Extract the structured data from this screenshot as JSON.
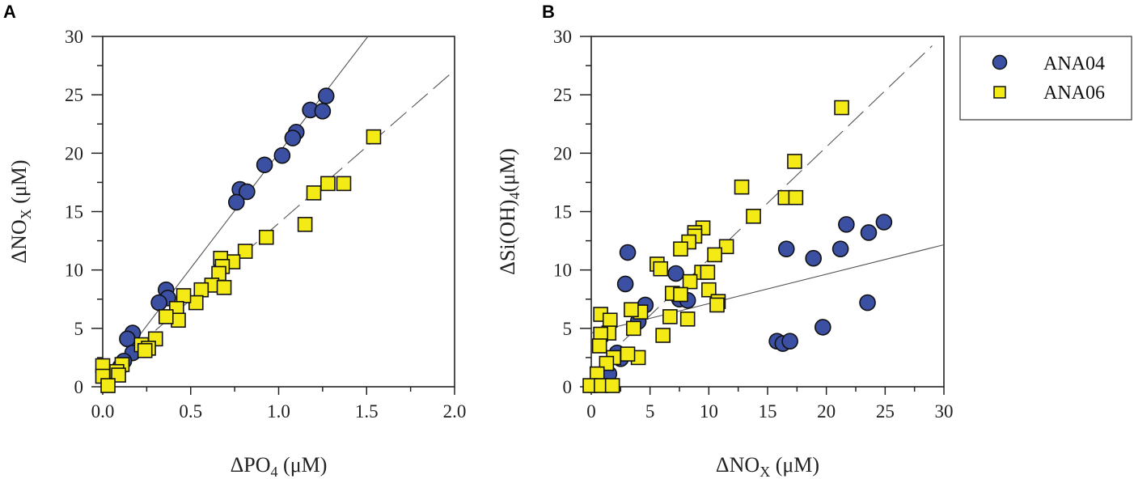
{
  "colors": {
    "circle": "#3b4fa3",
    "square": "#f4eb16",
    "stroke": "#111111",
    "line": "#555555"
  },
  "legend": {
    "position": "right",
    "items": [
      {
        "label": "ANA04",
        "marker": "circle"
      },
      {
        "label": "ANA06",
        "marker": "square"
      }
    ]
  },
  "chart_data": [
    {
      "type": "scatter",
      "panel": "A",
      "xlabel": {
        "main": "ΔPO",
        "sub": "4",
        "rest": " (μM)"
      },
      "ylabel": {
        "main": "ΔNO",
        "sub": "X",
        "rest": " (μM)"
      },
      "xlim": [
        0,
        2.0
      ],
      "ylim": [
        0,
        30
      ],
      "xticks": [
        0.0,
        0.5,
        1.0,
        1.5,
        2.0
      ],
      "xtick_labels": [
        "0.0",
        "0.5",
        "1.0",
        "1.5",
        "2.0"
      ],
      "xminor": 0.25,
      "yticks": [
        0,
        5,
        10,
        15,
        20,
        25,
        30
      ],
      "ytick_labels": [
        "0",
        "5",
        "10",
        "15",
        "20",
        "25",
        "30"
      ],
      "yminor": 2.5,
      "grid": false,
      "series": [
        {
          "name": "ANA04",
          "marker": "circle",
          "points": [
            [
              1.27,
              24.9
            ],
            [
              1.18,
              23.7
            ],
            [
              1.25,
              23.6
            ],
            [
              1.1,
              21.8
            ],
            [
              1.08,
              21.3
            ],
            [
              1.02,
              19.8
            ],
            [
              0.92,
              19.0
            ],
            [
              0.78,
              16.9
            ],
            [
              0.82,
              16.7
            ],
            [
              0.76,
              15.8
            ],
            [
              0.36,
              8.3
            ],
            [
              0.37,
              7.6
            ],
            [
              0.32,
              7.2
            ],
            [
              0.17,
              4.6
            ],
            [
              0.14,
              4.1
            ],
            [
              0.17,
              2.9
            ],
            [
              0.12,
              2.2
            ],
            [
              0.1,
              1.7
            ],
            [
              0.06,
              1.2
            ]
          ]
        },
        {
          "name": "ANA06",
          "marker": "square",
          "points": [
            [
              1.54,
              21.4
            ],
            [
              1.2,
              16.6
            ],
            [
              1.28,
              17.4
            ],
            [
              1.37,
              17.4
            ],
            [
              1.15,
              13.9
            ],
            [
              0.93,
              12.8
            ],
            [
              0.81,
              11.6
            ],
            [
              0.74,
              10.7
            ],
            [
              0.67,
              11.0
            ],
            [
              0.68,
              10.3
            ],
            [
              0.66,
              9.7
            ],
            [
              0.62,
              8.7
            ],
            [
              0.69,
              8.5
            ],
            [
              0.56,
              8.3
            ],
            [
              0.53,
              7.2
            ],
            [
              0.46,
              7.8
            ],
            [
              0.42,
              6.7
            ],
            [
              0.43,
              5.7
            ],
            [
              0.36,
              6.0
            ],
            [
              0.3,
              4.1
            ],
            [
              0.22,
              3.6
            ],
            [
              0.26,
              3.3
            ],
            [
              0.24,
              3.1
            ],
            [
              0.11,
              1.9
            ],
            [
              0.08,
              1.3
            ],
            [
              0.09,
              1.0
            ],
            [
              0.0,
              1.8
            ],
            [
              0.0,
              0.9
            ],
            [
              0.03,
              0.1
            ]
          ]
        }
      ],
      "fits": [
        {
          "series": "ANA04",
          "style": "solid",
          "slope": 19.7,
          "intercept": 0.3,
          "x_range": [
            0.05,
            2.0
          ]
        },
        {
          "series": "ANA06",
          "style": "dashed",
          "slope": 13.1,
          "intercept": 0.9,
          "x_range": [
            0.3,
            2.0
          ]
        }
      ]
    },
    {
      "type": "scatter",
      "panel": "B",
      "xlabel": {
        "main": "ΔNO",
        "sub": "X",
        "rest": " (μM)"
      },
      "ylabel": {
        "main": "ΔSi(OH)",
        "sub": "4",
        "rest": "(μM)"
      },
      "xlim": [
        0,
        30
      ],
      "ylim": [
        0,
        30
      ],
      "xticks": [
        0,
        5,
        10,
        15,
        20,
        25,
        30
      ],
      "xtick_labels": [
        "0",
        "5",
        "10",
        "15",
        "20",
        "25",
        "30"
      ],
      "xminor": 2.5,
      "yticks": [
        0,
        5,
        10,
        15,
        20,
        25,
        30
      ],
      "ytick_labels": [
        "0",
        "5",
        "10",
        "15",
        "20",
        "25",
        "30"
      ],
      "yminor": 2.5,
      "grid": false,
      "series": [
        {
          "name": "ANA04",
          "marker": "circle",
          "points": [
            [
              3.1,
              11.5
            ],
            [
              2.9,
              8.8
            ],
            [
              4.6,
              7.0
            ],
            [
              7.2,
              9.7
            ],
            [
              7.5,
              7.5
            ],
            [
              8.2,
              7.4
            ],
            [
              4.0,
              5.6
            ],
            [
              2.5,
              2.4
            ],
            [
              2.2,
              2.9
            ],
            [
              1.5,
              1.1
            ],
            [
              16.6,
              11.8
            ],
            [
              18.9,
              11.0
            ],
            [
              21.2,
              11.8
            ],
            [
              21.7,
              13.9
            ],
            [
              23.6,
              13.2
            ],
            [
              24.9,
              14.1
            ],
            [
              23.5,
              7.2
            ],
            [
              19.7,
              5.1
            ],
            [
              15.8,
              3.9
            ],
            [
              16.3,
              3.7
            ],
            [
              16.9,
              3.9
            ]
          ]
        },
        {
          "name": "ANA06",
          "marker": "square",
          "points": [
            [
              21.3,
              23.9
            ],
            [
              17.3,
              19.3
            ],
            [
              12.8,
              17.1
            ],
            [
              16.5,
              16.2
            ],
            [
              17.4,
              16.2
            ],
            [
              13.8,
              14.6
            ],
            [
              9.5,
              13.6
            ],
            [
              8.8,
              13.2
            ],
            [
              8.8,
              12.9
            ],
            [
              8.3,
              12.4
            ],
            [
              7.6,
              11.8
            ],
            [
              11.5,
              12.0
            ],
            [
              10.5,
              11.3
            ],
            [
              5.6,
              10.5
            ],
            [
              5.9,
              10.1
            ],
            [
              9.4,
              9.8
            ],
            [
              9.9,
              9.8
            ],
            [
              8.4,
              9.0
            ],
            [
              6.9,
              8.0
            ],
            [
              7.6,
              7.9
            ],
            [
              10.0,
              8.3
            ],
            [
              10.8,
              7.3
            ],
            [
              10.7,
              7.0
            ],
            [
              8.2,
              5.8
            ],
            [
              6.7,
              6.0
            ],
            [
              4.2,
              6.4
            ],
            [
              3.4,
              6.6
            ],
            [
              3.6,
              5.0
            ],
            [
              6.1,
              4.4
            ],
            [
              4.0,
              2.5
            ],
            [
              3.1,
              2.8
            ],
            [
              0.8,
              6.2
            ],
            [
              1.6,
              5.7
            ],
            [
              1.5,
              4.6
            ],
            [
              0.8,
              4.5
            ],
            [
              0.7,
              3.5
            ],
            [
              1.9,
              2.5
            ],
            [
              1.3,
              2.0
            ],
            [
              0.5,
              1.1
            ],
            [
              -0.1,
              0.1
            ],
            [
              0.85,
              0.1
            ],
            [
              1.8,
              0.1
            ]
          ]
        }
      ],
      "fits": [
        {
          "series": "ANA04",
          "style": "solid",
          "slope": 0.252,
          "intercept": 4.6,
          "x_range": [
            0,
            30
          ]
        },
        {
          "series": "ANA06",
          "style": "dashed",
          "slope": 0.962,
          "intercept": 1.3,
          "x_range": [
            2.7,
            29.0
          ]
        }
      ]
    }
  ]
}
